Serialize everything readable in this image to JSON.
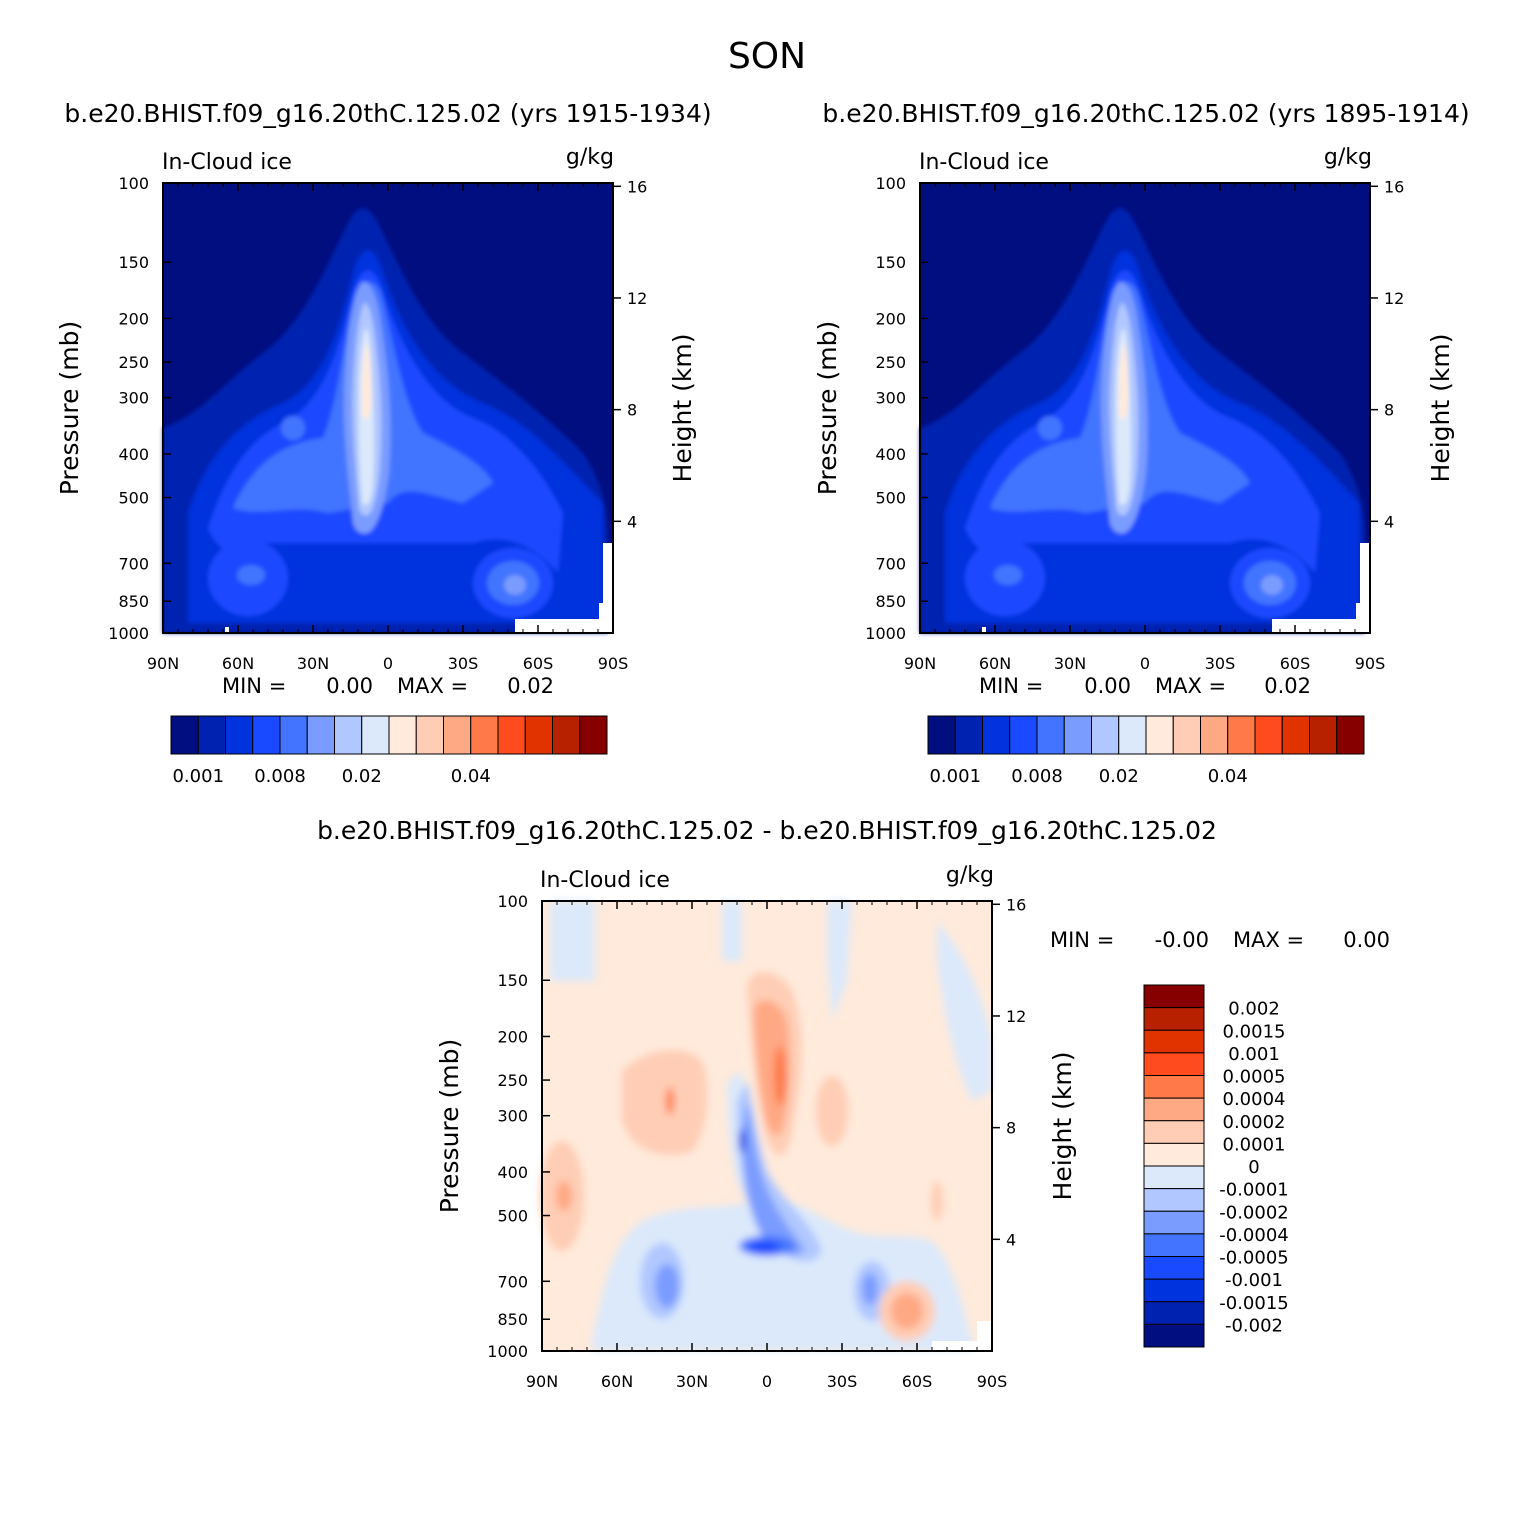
{
  "title": "SON",
  "colors": {
    "ice_levels": [
      "#000e80",
      "#0022b0",
      "#0033dd",
      "#1a4aff",
      "#4274ff",
      "#7a9bff",
      "#b0c7ff",
      "#dce9fb",
      "#ffeadb",
      "#ffcdb5",
      "#ffa884",
      "#ff7a48",
      "#ff4b1d",
      "#e13300",
      "#b82100",
      "#870000"
    ],
    "diff_levels": [
      "#000e80",
      "#0022b0",
      "#0033dd",
      "#1a4aff",
      "#4274ff",
      "#7a9bff",
      "#b0c7ff",
      "#dce9fb",
      "#ffeadb",
      "#ffcdb5",
      "#ffa884",
      "#ff7a48",
      "#ff4b1d",
      "#e13300",
      "#b82100",
      "#870000"
    ]
  },
  "chart_data": [
    {
      "type": "heatmap",
      "panel": "left",
      "title": "b.e20.BHIST.f09_g16.20thC.125.02 (yrs 1915-1934)",
      "left_string": "In-Cloud ice",
      "right_string": "g/kg",
      "xlabel": "",
      "ylabel": "Pressure (mb)",
      "ylabel_right": "Height (km)",
      "x_ticks": [
        "90N",
        "60N",
        "30N",
        "0",
        "30S",
        "60S",
        "90S"
      ],
      "y_ticks": [
        100,
        150,
        200,
        250,
        300,
        400,
        500,
        700,
        850,
        1000
      ],
      "y_ticks_right": [
        16,
        12,
        8,
        4
      ],
      "ylim": [
        1000,
        100
      ],
      "stats": {
        "min_label": "MIN =",
        "min_value": "0.00",
        "max_label": "MAX =",
        "max_value": "0.02"
      },
      "colorbar": {
        "levels": [
          0.001,
          0.002,
          0.004,
          0.006,
          0.008,
          0.01,
          0.015,
          0.02,
          0.025,
          0.03,
          0.035,
          0.04,
          0.045,
          0.05,
          0.06
        ],
        "labels": [
          "0.001",
          "0.008",
          "0.02",
          "0.04"
        ]
      }
    },
    {
      "type": "heatmap",
      "panel": "right",
      "title": "b.e20.BHIST.f09_g16.20thC.125.02 (yrs 1895-1914)",
      "left_string": "In-Cloud ice",
      "right_string": "g/kg",
      "xlabel": "",
      "ylabel": "Pressure (mb)",
      "ylabel_right": "Height (km)",
      "x_ticks": [
        "90N",
        "60N",
        "30N",
        "0",
        "30S",
        "60S",
        "90S"
      ],
      "y_ticks": [
        100,
        150,
        200,
        250,
        300,
        400,
        500,
        700,
        850,
        1000
      ],
      "y_ticks_right": [
        16,
        12,
        8,
        4
      ],
      "ylim": [
        1000,
        100
      ],
      "stats": {
        "min_label": "MIN =",
        "min_value": "0.00",
        "max_label": "MAX =",
        "max_value": "0.02"
      },
      "colorbar": {
        "levels": [
          0.001,
          0.002,
          0.004,
          0.006,
          0.008,
          0.01,
          0.015,
          0.02,
          0.025,
          0.03,
          0.035,
          0.04,
          0.045,
          0.05,
          0.06
        ],
        "labels": [
          "0.001",
          "0.008",
          "0.02",
          "0.04"
        ]
      }
    },
    {
      "type": "heatmap",
      "panel": "diff",
      "title": "b.e20.BHIST.f09_g16.20thC.125.02 - b.e20.BHIST.f09_g16.20thC.125.02",
      "left_string": "In-Cloud ice",
      "right_string": "g/kg",
      "xlabel": "",
      "ylabel": "Pressure (mb)",
      "ylabel_right": "Height (km)",
      "x_ticks": [
        "90N",
        "60N",
        "30N",
        "0",
        "30S",
        "60S",
        "90S"
      ],
      "y_ticks": [
        100,
        150,
        200,
        250,
        300,
        400,
        500,
        700,
        850,
        1000
      ],
      "y_ticks_right": [
        16,
        12,
        8,
        4
      ],
      "ylim": [
        1000,
        100
      ],
      "stats": {
        "min_label": "MIN =",
        "min_value": "-0.00",
        "max_label": "MAX =",
        "max_value": "0.00"
      },
      "colorbar": {
        "labels": [
          "0.002",
          "0.0015",
          "0.001",
          "0.0005",
          "0.0004",
          "0.0002",
          "0.0001",
          "0",
          "-0.0001",
          "-0.0002",
          "-0.0004",
          "-0.0005",
          "-0.001",
          "-0.0015",
          "-0.002"
        ]
      }
    }
  ]
}
